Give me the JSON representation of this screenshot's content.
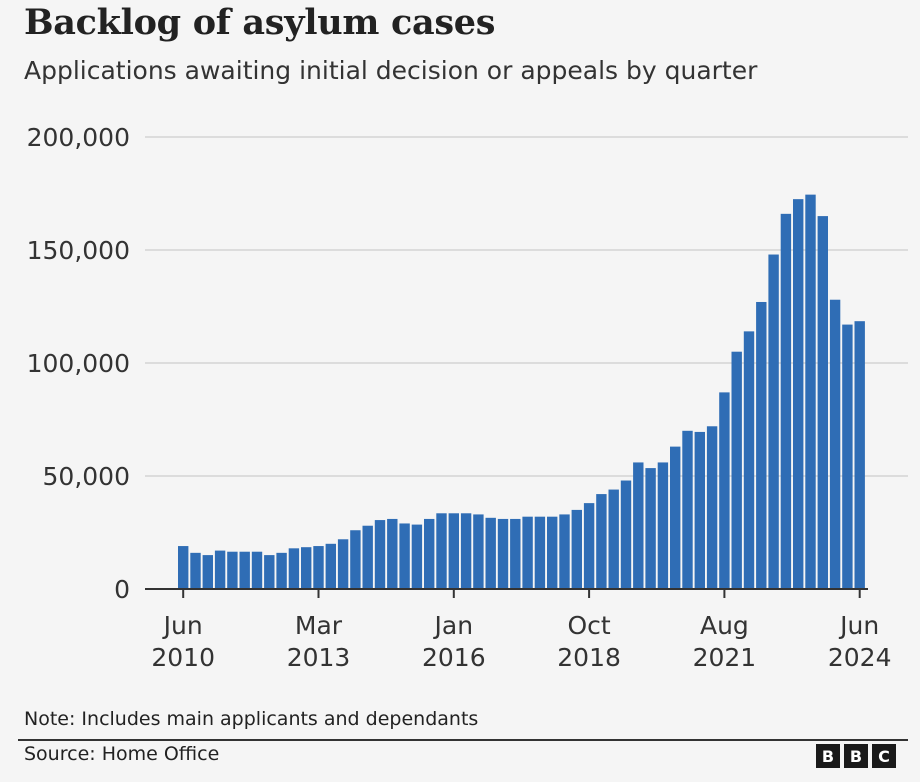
{
  "title": "Backlog of asylum cases",
  "subtitle": "Applications awaiting initial decision or appeals by quarter",
  "note": "Note: Includes main applicants and dependants",
  "source": "Source: Home Office",
  "logo": [
    "B",
    "B",
    "C"
  ],
  "colors": {
    "bar": "#2f6db5",
    "grid": "#d4d4d4",
    "axis": "#333333",
    "text": "#333333"
  },
  "chart_data": {
    "type": "bar",
    "title": "Backlog of asylum cases",
    "xlabel": "",
    "ylabel": "",
    "ylim": [
      0,
      200000
    ],
    "yticks": [
      0,
      50000,
      100000,
      150000,
      200000
    ],
    "ytick_labels": [
      "0",
      "50,000",
      "100,000",
      "150,000",
      "200,000"
    ],
    "grid": true,
    "legend": "none",
    "xtick_labels": [
      {
        "index": 0,
        "line1": "Jun",
        "line2": "2010"
      },
      {
        "index": 11,
        "line1": "Mar",
        "line2": "2013"
      },
      {
        "index": 22,
        "line1": "Jan",
        "line2": "2016"
      },
      {
        "index": 33,
        "line1": "Oct",
        "line2": "2018"
      },
      {
        "index": 44,
        "line1": "Aug",
        "line2": "2021"
      },
      {
        "index": 55,
        "line1": "Jun",
        "line2": "2024"
      }
    ],
    "series": [
      {
        "values": [
          19000,
          16000,
          15000,
          17000,
          16500,
          16500,
          16500,
          15000,
          16000,
          18000,
          18500,
          19000,
          20000,
          22000,
          26000,
          28000,
          30500,
          31000,
          29000,
          28500,
          31000,
          33500,
          33500,
          33500,
          33000,
          31500,
          31000,
          31000,
          32000,
          32000,
          32000,
          33000,
          35000,
          38000,
          42000,
          44000,
          48000,
          56000,
          53500,
          56000,
          63000,
          70000,
          69500,
          72000,
          87000,
          105000,
          114000,
          127000,
          148000,
          166000,
          172500,
          174500,
          165000,
          128000,
          117000,
          118500
        ]
      }
    ]
  }
}
